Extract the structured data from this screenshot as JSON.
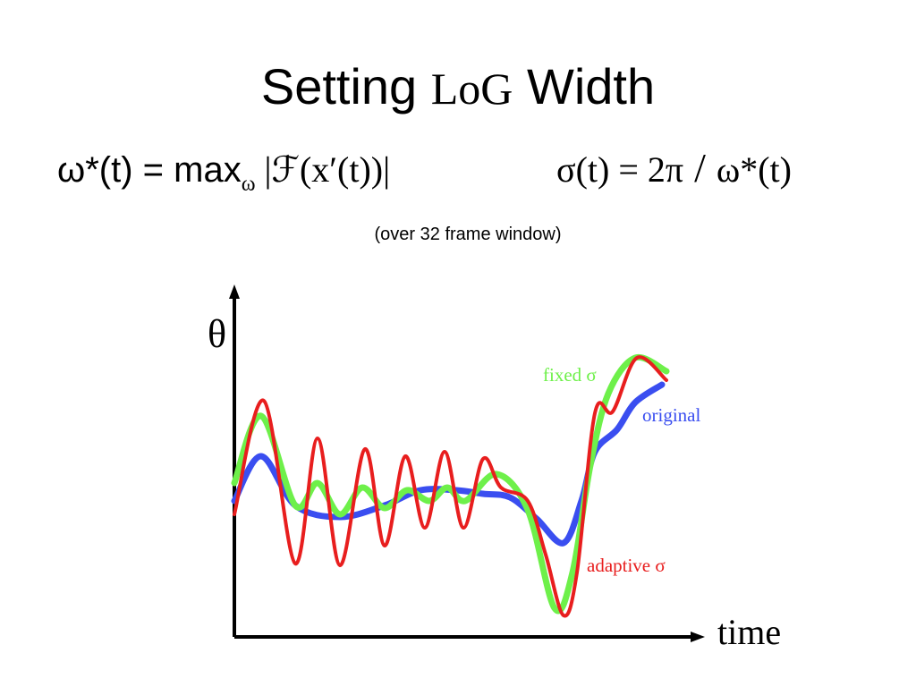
{
  "header": {
    "title": {
      "part1": "Setting ",
      "part2": "LoG",
      "part3": " Width"
    }
  },
  "formulas": {
    "omega": {
      "lhs": "ω*(t) = max",
      "sub": "ω",
      "rhs": " |ℱ(x′(t))|"
    },
    "sigma": {
      "lhs": "σ(t) = 2π",
      "slash": "/",
      "rhs": "ω*(t)"
    }
  },
  "note": "(over 32 frame window)",
  "plot": {
    "y_label": "θ",
    "x_label": "time",
    "curves": [
      {
        "label": "fixed σ"
      },
      {
        "label": "original"
      },
      {
        "label": "adaptive σ"
      }
    ]
  }
}
